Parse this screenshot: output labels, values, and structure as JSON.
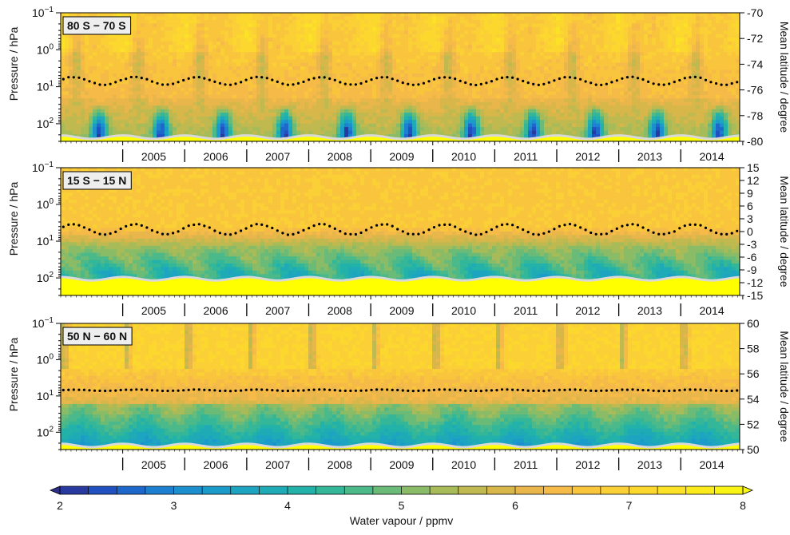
{
  "chart_data": {
    "type": "heatmap",
    "years": [
      "2005",
      "2006",
      "2007",
      "2008",
      "2009",
      "2010",
      "2011",
      "2012",
      "2013",
      "2014"
    ],
    "x_range": [
      2004.0,
      2014.95
    ],
    "y_axis": {
      "label": "Pressure / hPa",
      "scale": "log",
      "range_hPa": [
        0.1,
        300
      ],
      "ticks": [
        {
          "mantissa": "10",
          "exponent": "−1",
          "value": 0.1
        },
        {
          "mantissa": "10",
          "exponent": "0",
          "value": 1
        },
        {
          "mantissa": "10",
          "exponent": "1",
          "value": 10
        },
        {
          "mantissa": "10",
          "exponent": "2",
          "value": 100
        }
      ]
    },
    "right_axis_label": "Mean latitude / degree",
    "panels": [
      {
        "title": "80 S − 70 S",
        "lat_range": [
          -80,
          -70
        ],
        "lat_ticks": [
          "-70",
          "-72",
          "-74",
          "-76",
          "-78",
          "-80"
        ],
        "lat_tick_values": [
          -70,
          -72,
          -74,
          -76,
          -78,
          -80
        ],
        "mean_latitude_mean": -75.3,
        "mean_latitude_amplitude": 0.3,
        "tropopause_hPa": 220,
        "pattern": "polar_south"
      },
      {
        "title": "15 S − 15 N",
        "lat_range": [
          -15,
          15
        ],
        "lat_ticks": [
          "15",
          "12",
          "9",
          "6",
          "3",
          "0",
          "-3",
          "-6",
          "-9",
          "-12",
          "-15"
        ],
        "lat_tick_values": [
          15,
          12,
          9,
          6,
          3,
          0,
          -3,
          -6,
          -9,
          -12,
          -15
        ],
        "mean_latitude_mean": 0.5,
        "mean_latitude_amplitude": 1.2,
        "tropopause_hPa": 100,
        "pattern": "tropics"
      },
      {
        "title": "50 N − 60 N",
        "lat_range": [
          50,
          60
        ],
        "lat_ticks": [
          "60",
          "58",
          "56",
          "54",
          "52",
          "50"
        ],
        "lat_tick_values": [
          60,
          58,
          56,
          54,
          52,
          50
        ],
        "mean_latitude_mean": 54.7,
        "mean_latitude_amplitude": 0.05,
        "tropopause_hPa": 220,
        "pattern": "midlat_north"
      }
    ],
    "colorbar": {
      "label": "Water vapour / ppmv",
      "range": [
        2,
        8
      ],
      "ticks": [
        "2",
        "3",
        "4",
        "5",
        "6",
        "7",
        "8"
      ],
      "tick_values": [
        2,
        3,
        4,
        5,
        6,
        7,
        8
      ],
      "levels": 24,
      "extend": "both"
    },
    "colormap": [
      "#2c2f8e",
      "#1f55c8",
      "#1d7fd0",
      "#1b98cc",
      "#1ca7bd",
      "#22b2a8",
      "#44b98d",
      "#7bbc6f",
      "#adbb55",
      "#d6b74a",
      "#f3b64a",
      "#fbc93a",
      "#fcd92e",
      "#fbe91f",
      "#f8f810"
    ],
    "mask_color": "#ffff00",
    "tropopause_line_color": "#d9d9d9"
  }
}
